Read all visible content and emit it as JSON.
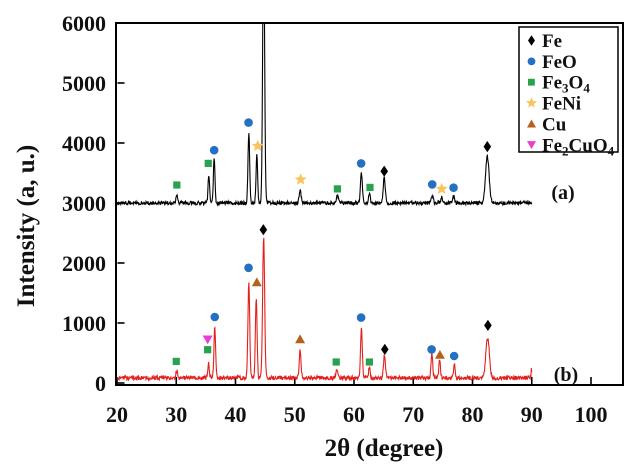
{
  "figure": {
    "background": "#ffffff",
    "plot_border_color": "#000000"
  },
  "chart_data": {
    "type": "line",
    "title": "",
    "xlabel": "2θ (degree)",
    "ylabel": "Intensity (a, u.)",
    "xlim": [
      20,
      105.4
    ],
    "ylim": [
      0,
      6000
    ],
    "x_ticks": [
      20,
      30,
      40,
      50,
      60,
      70,
      80,
      90,
      100
    ],
    "y_ticks": [
      0,
      1000,
      2000,
      3000,
      4000,
      5000,
      6000
    ],
    "grid": false,
    "legend_position": "top-right",
    "legend": [
      {
        "phase": "Fe",
        "label": "Fe",
        "shape": "diamond",
        "color": "#000000"
      },
      {
        "phase": "FeO",
        "label": "FeO",
        "shape": "circle",
        "color": "#2470c2"
      },
      {
        "phase": "Fe3O4",
        "label": "Fe3O4",
        "shape": "square",
        "color": "#28a24c"
      },
      {
        "phase": "FeNi",
        "label": "FeNi",
        "shape": "star",
        "color": "#f9c45e"
      },
      {
        "phase": "Cu",
        "label": "Cu",
        "shape": "triangle-up",
        "color": "#b5611c"
      },
      {
        "phase": "Fe2CuO4",
        "label": "Fe2CuO4",
        "shape": "triangle-down",
        "color": "#e83fd0"
      }
    ],
    "series": [
      {
        "name": "(a)",
        "color": "#000000",
        "baseline": 3000,
        "noise": 60,
        "x_start": 20,
        "x_end": 90,
        "peaks": [
          [
            30.1,
            150,
            0.14
          ],
          [
            35.5,
            470,
            0.13
          ],
          [
            36.4,
            770,
            0.13
          ],
          [
            42.25,
            1180,
            0.14
          ],
          [
            43.6,
            820,
            0.13
          ],
          [
            44.75,
            4600,
            0.16
          ],
          [
            50.9,
            210,
            0.17
          ],
          [
            57.2,
            120,
            0.18
          ],
          [
            61.25,
            500,
            0.16
          ],
          [
            62.6,
            150,
            0.14
          ],
          [
            65.1,
            430,
            0.17
          ],
          [
            73.2,
            130,
            0.16
          ],
          [
            74.8,
            100,
            0.14
          ],
          [
            76.8,
            120,
            0.14
          ],
          [
            82.5,
            780,
            0.3
          ]
        ],
        "markers": [
          {
            "phase": "Fe3O4",
            "x": 30.1,
            "y": 3300
          },
          {
            "phase": "Fe3O4",
            "x": 35.4,
            "y": 3660
          },
          {
            "phase": "FeO",
            "x": 36.4,
            "y": 3880
          },
          {
            "phase": "FeO",
            "x": 42.2,
            "y": 4340
          },
          {
            "phase": "FeNi",
            "x": 43.75,
            "y": 3950
          },
          {
            "phase": "FeNi",
            "x": 51.0,
            "y": 3390
          },
          {
            "phase": "Fe3O4",
            "x": 57.2,
            "y": 3235
          },
          {
            "phase": "FeO",
            "x": 61.2,
            "y": 3660
          },
          {
            "phase": "Fe3O4",
            "x": 62.7,
            "y": 3260
          },
          {
            "phase": "Fe",
            "x": 65.1,
            "y": 3530
          },
          {
            "phase": "FeO",
            "x": 73.2,
            "y": 3310
          },
          {
            "phase": "FeNi",
            "x": 74.8,
            "y": 3235
          },
          {
            "phase": "FeO",
            "x": 76.8,
            "y": 3255
          },
          {
            "phase": "Fe",
            "x": 82.5,
            "y": 3940
          }
        ]
      },
      {
        "name": "(b)",
        "color": "#e3201b",
        "baseline": 85,
        "noise": 70,
        "x_start": 20,
        "x_end": 90,
        "peaks": [
          [
            30.1,
            130,
            0.14
          ],
          [
            35.45,
            250,
            0.12
          ],
          [
            36.5,
            850,
            0.14
          ],
          [
            42.25,
            1600,
            0.15
          ],
          [
            43.5,
            1350,
            0.14
          ],
          [
            44.75,
            2350,
            0.17
          ],
          [
            50.9,
            470,
            0.15
          ],
          [
            57.1,
            120,
            0.16
          ],
          [
            61.25,
            820,
            0.15
          ],
          [
            62.6,
            170,
            0.13
          ],
          [
            65.15,
            390,
            0.16
          ],
          [
            73.15,
            400,
            0.14
          ],
          [
            74.45,
            300,
            0.13
          ],
          [
            76.95,
            220,
            0.14
          ],
          [
            82.55,
            670,
            0.3
          ],
          [
            89.95,
            160,
            0.05
          ]
        ],
        "markers": [
          {
            "phase": "Fe3O4",
            "x": 30.0,
            "y": 360
          },
          {
            "phase": "Fe3O4",
            "x": 35.3,
            "y": 555
          },
          {
            "phase": "Fe2CuO4",
            "x": 35.3,
            "y": 725
          },
          {
            "phase": "FeO",
            "x": 36.5,
            "y": 1100
          },
          {
            "phase": "FeO",
            "x": 42.2,
            "y": 1920
          },
          {
            "phase": "Cu",
            "x": 43.6,
            "y": 1680
          },
          {
            "phase": "Fe",
            "x": 44.7,
            "y": 2555
          },
          {
            "phase": "Cu",
            "x": 50.9,
            "y": 730
          },
          {
            "phase": "Fe3O4",
            "x": 57.0,
            "y": 350
          },
          {
            "phase": "FeO",
            "x": 61.2,
            "y": 1090
          },
          {
            "phase": "Fe3O4",
            "x": 62.6,
            "y": 350
          },
          {
            "phase": "Fe",
            "x": 65.2,
            "y": 560
          },
          {
            "phase": "FeO",
            "x": 73.1,
            "y": 560
          },
          {
            "phase": "Cu",
            "x": 74.5,
            "y": 470
          },
          {
            "phase": "FeO",
            "x": 76.9,
            "y": 450
          },
          {
            "phase": "Fe",
            "x": 82.6,
            "y": 960
          }
        ]
      }
    ]
  }
}
